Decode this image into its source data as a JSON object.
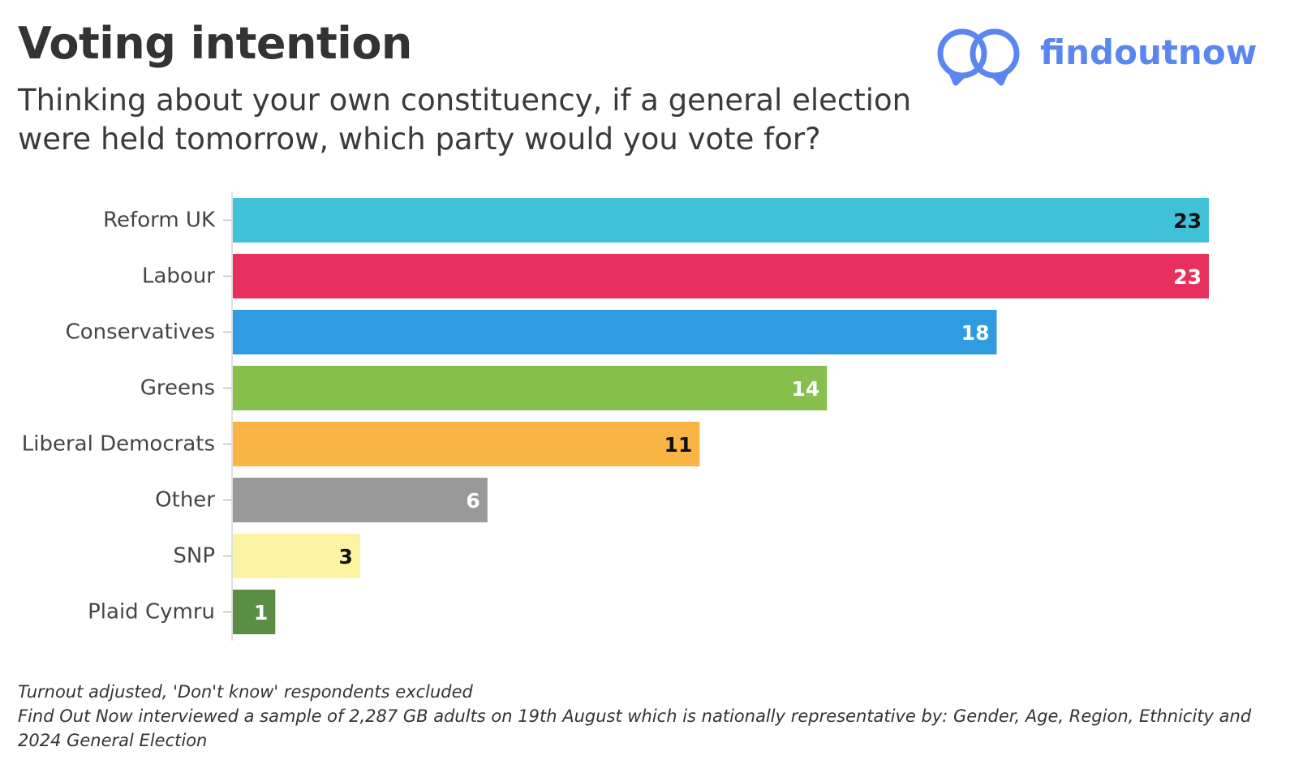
{
  "header": {
    "title": "Voting intention",
    "subtitle": "Thinking about your own constituency, if a general election were held tomorrow, which party would you vote for?"
  },
  "logo": {
    "text": "findoutnow",
    "color": "#5b86f0"
  },
  "chart_data": {
    "type": "bar",
    "orientation": "horizontal",
    "categories": [
      "Reform UK",
      "Labour",
      "Conservatives",
      "Greens",
      "Liberal Democrats",
      "Other",
      "SNP",
      "Plaid Cymru"
    ],
    "values": [
      23,
      23,
      18,
      14,
      11,
      6,
      3,
      1
    ],
    "colors": [
      "#40c1d8",
      "#e8305e",
      "#2f9be0",
      "#86bf4b",
      "#f8b546",
      "#999999",
      "#fcf4a3",
      "#5a8e45"
    ],
    "label_text_colors": [
      "#111111",
      "#ffffff",
      "#ffffff",
      "#ffffff",
      "#111111",
      "#ffffff",
      "#111111",
      "#ffffff"
    ],
    "xlim": [
      0,
      23
    ],
    "data_labels": true,
    "grid": false,
    "legend": "none"
  },
  "footnote": {
    "line1": "Turnout adjusted, 'Don't know' respondents excluded",
    "line2": "Find Out Now interviewed a sample of 2,287 GB adults on 19th August which is nationally representative by: Gender, Age, Region, Ethnicity and 2024 General Election"
  }
}
